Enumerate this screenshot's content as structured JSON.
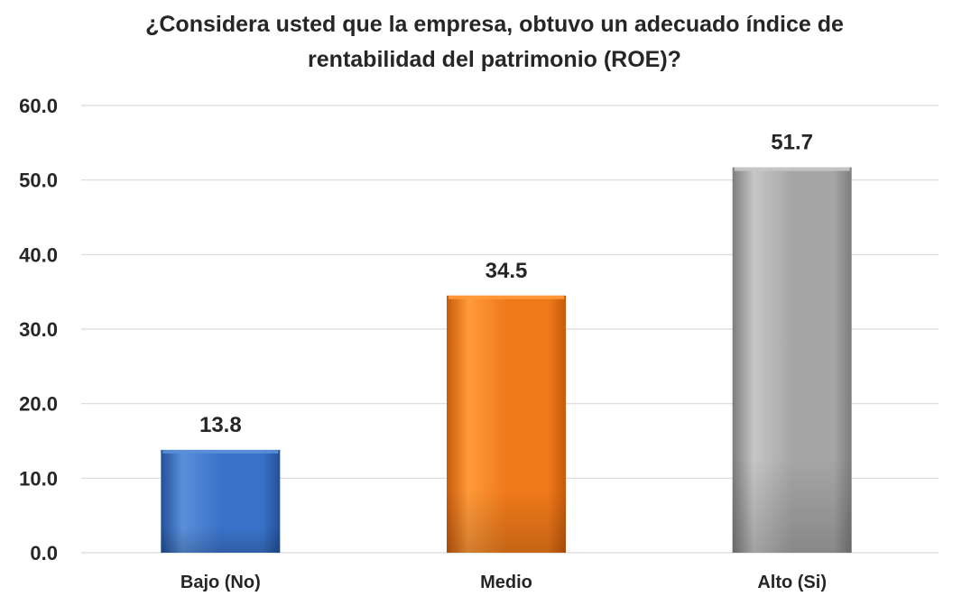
{
  "chart_data": {
    "type": "bar",
    "title_lines": [
      "¿Considera usted que la empresa, obtuvo un adecuado índice de",
      "rentabilidad del patrimonio (ROE)?"
    ],
    "categories": [
      "Bajo (No)",
      "Medio",
      "Alto (Si)"
    ],
    "values": [
      13.8,
      34.5,
      51.7
    ],
    "value_labels": [
      "13.8",
      "34.5",
      "51.7"
    ],
    "ylim": [
      0,
      60
    ],
    "yticks": [
      "0.0",
      "10.0",
      "20.0",
      "30.0",
      "40.0",
      "50.0",
      "60.0"
    ],
    "grid": true,
    "legend": "none",
    "bar_colors": [
      {
        "light": "#5a8fd9",
        "main": "#3a72c9",
        "dark": "#22509a"
      },
      {
        "light": "#ff9a3a",
        "main": "#f07a1a",
        "dark": "#c85a0c"
      },
      {
        "light": "#c6c6c6",
        "main": "#a6a6a6",
        "dark": "#7d7d7d"
      }
    ]
  }
}
